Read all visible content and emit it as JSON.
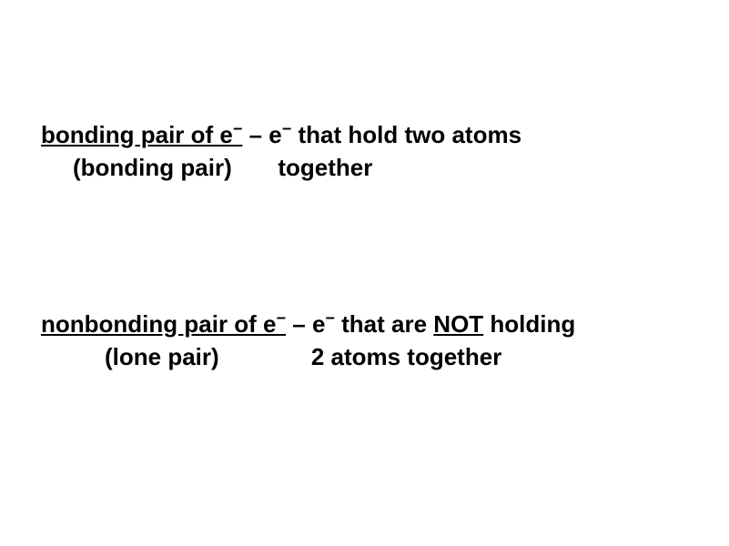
{
  "colors": {
    "background": "#ffffff",
    "text": "#000000"
  },
  "typography": {
    "fontFamily": "Arial, Helvetica, sans-serif",
    "fontSize": 26,
    "fontWeight": "bold"
  },
  "def1": {
    "term_prefix": "bonding pair of e",
    "term_super": "−",
    "dash": " – e",
    "dash_super": "−",
    "desc_part1": " that hold two atoms",
    "alt_name": "(bonding pair)",
    "desc_part2": "together"
  },
  "def2": {
    "term_prefix": "nonbonding pair of e",
    "term_super": "−",
    "dash": " – e",
    "dash_super": "−",
    "desc_part1": " that are ",
    "not_word": "NOT",
    "desc_part1b": " holding",
    "alt_name": "(lone pair)",
    "desc_part2": "2 atoms together"
  }
}
